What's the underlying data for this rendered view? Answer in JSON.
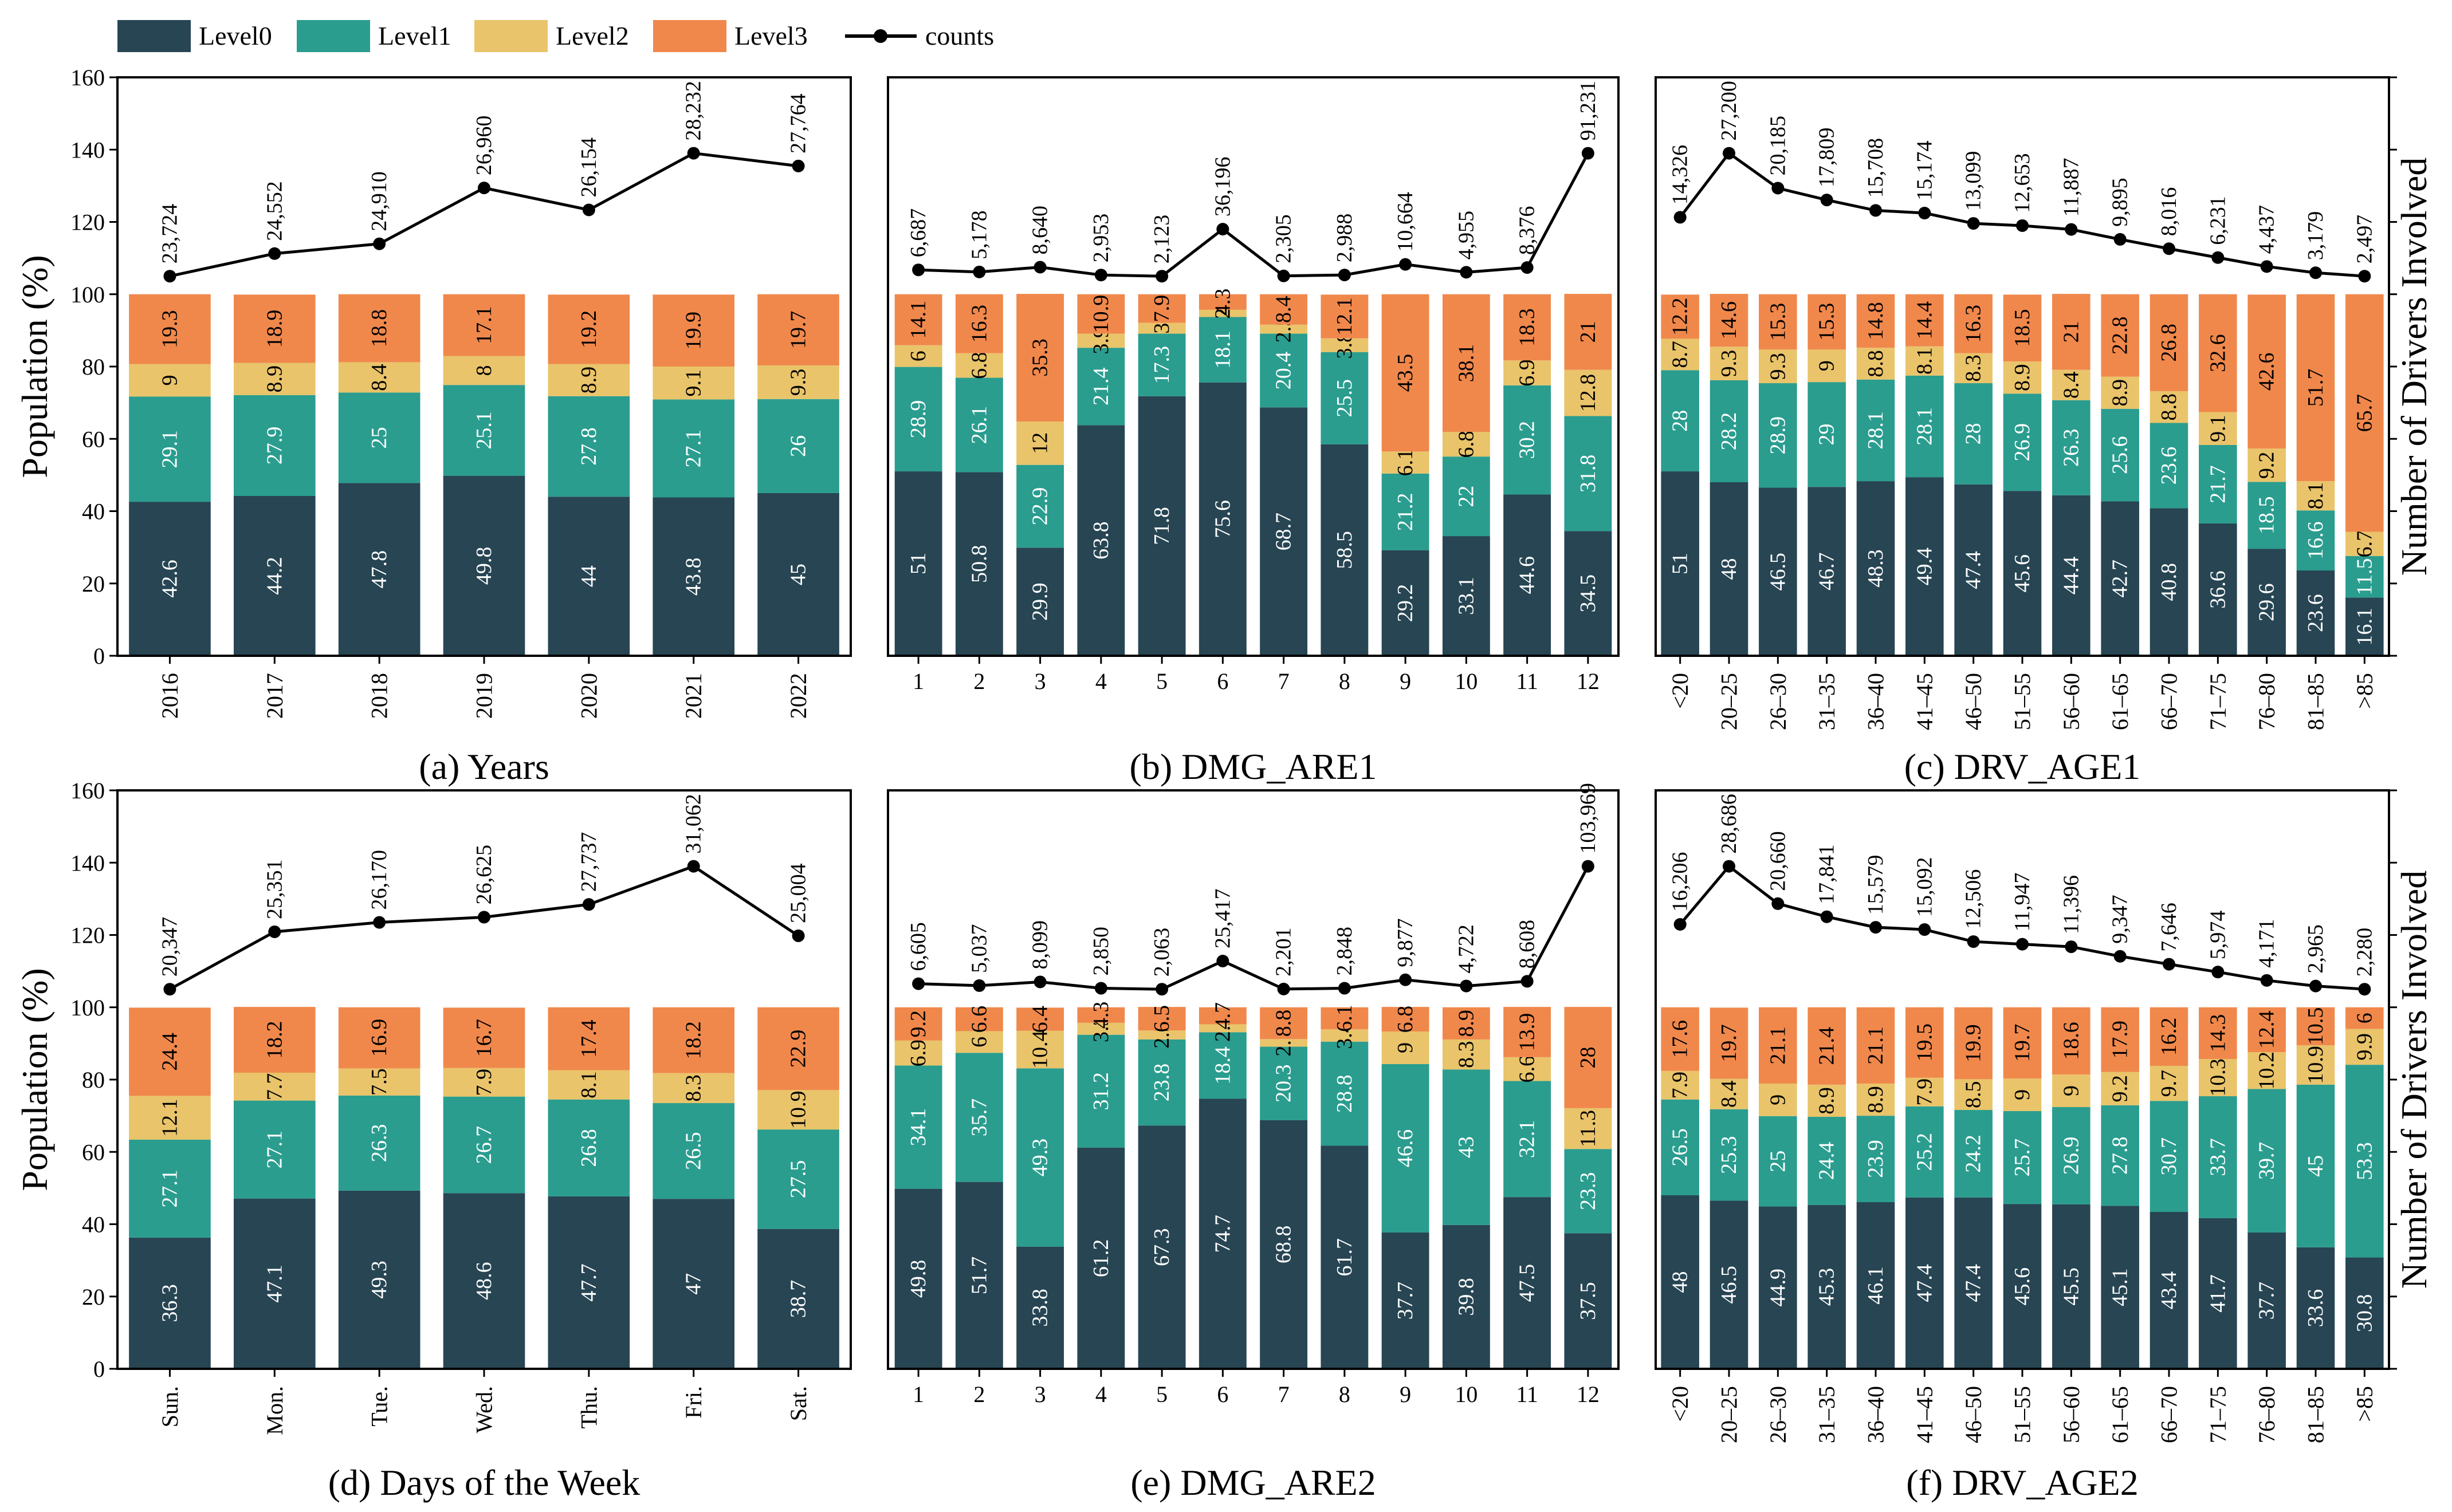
{
  "colors": {
    "Level0": "#274553",
    "Level1": "#2a9d8f",
    "Level2": "#e9c46a",
    "Level3": "#f0884c",
    "counts": "#000000"
  },
  "legend": [
    "Level0",
    "Level1",
    "Level2",
    "Level3",
    "counts"
  ],
  "axis_labels": {
    "left": "Population (%)",
    "right": "Number of Drivers Involved"
  },
  "chart_data": [
    {
      "id": "a",
      "type": "bar",
      "title": "(a) Years",
      "ylabel": "Population (%)",
      "ylim": [
        0,
        160
      ],
      "yticks": [
        "0",
        "20",
        "40",
        "60",
        "80",
        "100",
        "120",
        "140",
        "160"
      ],
      "categories": [
        "2016",
        "2017",
        "2018",
        "2019",
        "2020",
        "2021",
        "2022"
      ],
      "series": [
        {
          "name": "Level0",
          "values": [
            42.6,
            44.2,
            47.8,
            49.8,
            44,
            43.8,
            45
          ]
        },
        {
          "name": "Level1",
          "values": [
            29.1,
            27.9,
            25,
            25.1,
            27.8,
            27.1,
            26
          ]
        },
        {
          "name": "Level2",
          "values": [
            9,
            8.9,
            8.4,
            8,
            8.9,
            9.1,
            9.3
          ]
        },
        {
          "name": "Level3",
          "values": [
            19.3,
            18.9,
            18.8,
            17.1,
            19.2,
            19.9,
            19.7
          ]
        }
      ],
      "counts": [
        "23,724",
        "24,552",
        "24,910",
        "26,960",
        "26,154",
        "28,232",
        "27,764"
      ]
    },
    {
      "id": "b",
      "type": "bar",
      "title": "(b) DMG_ARE1",
      "ylim": [
        0,
        160
      ],
      "categories": [
        "1",
        "2",
        "3",
        "4",
        "5",
        "6",
        "7",
        "8",
        "9",
        "10",
        "11",
        "12"
      ],
      "series": [
        {
          "name": "Level0",
          "values": [
            51,
            50.8,
            29.9,
            63.8,
            71.8,
            75.6,
            68.7,
            58.5,
            29.2,
            33.1,
            44.6,
            34.5
          ]
        },
        {
          "name": "Level1",
          "values": [
            28.9,
            26.1,
            22.9,
            21.4,
            17.3,
            18.1,
            20.4,
            25.5,
            21.2,
            22,
            30.2,
            31.8
          ]
        },
        {
          "name": "Level2",
          "values": [
            6,
            6.8,
            12,
            3.9,
            3,
            2,
            2.5,
            3.8,
            6.1,
            6.8,
            6.9,
            12.8
          ]
        },
        {
          "name": "Level3",
          "values": [
            14.1,
            16.3,
            35.3,
            10.9,
            7.9,
            4.3,
            8.4,
            12.1,
            43.5,
            38.1,
            18.3,
            21
          ]
        }
      ],
      "counts": [
        "6,687",
        "5,178",
        "8,640",
        "2,953",
        "2,123",
        "36,196",
        "2,305",
        "2,988",
        "10,664",
        "4,955",
        "8,376",
        "91,231"
      ]
    },
    {
      "id": "c",
      "type": "bar",
      "title": "(c) DRV_AGE1",
      "ylabel": "Number of Drivers Involved",
      "ylim": [
        0,
        160
      ],
      "categories": [
        "<20",
        "20–25",
        "26–30",
        "31–35",
        "36–40",
        "41–45",
        "46–50",
        "51–55",
        "56–60",
        "61–65",
        "66–70",
        "71–75",
        "76–80",
        "81–85",
        ">85"
      ],
      "series": [
        {
          "name": "Level0",
          "values": [
            51,
            48,
            46.5,
            46.7,
            48.3,
            49.4,
            47.4,
            45.6,
            44.4,
            42.7,
            40.8,
            36.6,
            29.6,
            23.6,
            16.1
          ]
        },
        {
          "name": "Level1",
          "values": [
            28,
            28.2,
            28.9,
            29,
            28.1,
            28.1,
            28,
            26.9,
            26.3,
            25.6,
            23.6,
            21.7,
            18.5,
            16.6,
            11.5
          ]
        },
        {
          "name": "Level2",
          "values": [
            8.7,
            9.3,
            9.3,
            9,
            8.8,
            8.1,
            8.3,
            8.9,
            8.4,
            8.9,
            8.8,
            9.1,
            9.2,
            8.1,
            6.7
          ]
        },
        {
          "name": "Level3",
          "values": [
            12.2,
            14.6,
            15.3,
            15.3,
            14.8,
            14.4,
            16.3,
            18.5,
            21,
            22.8,
            26.8,
            32.6,
            42.6,
            51.7,
            65.7
          ]
        }
      ],
      "counts": [
        "14,326",
        "27,200",
        "20,185",
        "17,809",
        "15,708",
        "15,174",
        "13,099",
        "12,653",
        "11,887",
        "9,895",
        "8,016",
        "6,231",
        "4,437",
        "3,179",
        "2,497"
      ]
    },
    {
      "id": "d",
      "type": "bar",
      "title": "(d) Days of the Week",
      "ylabel": "Population (%)",
      "ylim": [
        0,
        160
      ],
      "yticks": [
        "0",
        "20",
        "40",
        "60",
        "80",
        "100",
        "120",
        "140",
        "160"
      ],
      "categories": [
        "Sun.",
        "Mon.",
        "Tue.",
        "Wed.",
        "Thu.",
        "Fri.",
        "Sat."
      ],
      "series": [
        {
          "name": "Level0",
          "values": [
            36.3,
            47.1,
            49.3,
            48.6,
            47.7,
            47,
            38.7
          ]
        },
        {
          "name": "Level1",
          "values": [
            27.1,
            27.1,
            26.3,
            26.7,
            26.8,
            26.5,
            27.5
          ]
        },
        {
          "name": "Level2",
          "values": [
            12.1,
            7.7,
            7.5,
            7.9,
            8.1,
            8.3,
            10.9
          ]
        },
        {
          "name": "Level3",
          "values": [
            24.4,
            18.2,
            16.9,
            16.7,
            17.4,
            18.2,
            22.9
          ]
        }
      ],
      "counts": [
        "20,347",
        "25,351",
        "26,170",
        "26,625",
        "27,737",
        "31,062",
        "25,004"
      ]
    },
    {
      "id": "e",
      "type": "bar",
      "title": "(e) DMG_ARE2",
      "ylim": [
        0,
        160
      ],
      "categories": [
        "1",
        "2",
        "3",
        "4",
        "5",
        "6",
        "7",
        "8",
        "9",
        "10",
        "11",
        "12"
      ],
      "series": [
        {
          "name": "Level0",
          "values": [
            49.8,
            51.7,
            33.8,
            61.2,
            67.3,
            74.7,
            68.8,
            61.7,
            37.7,
            39.8,
            47.5,
            37.5
          ]
        },
        {
          "name": "Level1",
          "values": [
            34.1,
            35.7,
            49.3,
            31.2,
            23.8,
            18.4,
            20.3,
            28.8,
            46.6,
            43,
            32.1,
            23.3
          ]
        },
        {
          "name": "Level2",
          "values": [
            6.9,
            6,
            10.4,
            3.3,
            2.5,
            2.2,
            2.1,
            3.4,
            9,
            8.3,
            6.6,
            11.3
          ]
        },
        {
          "name": "Level3",
          "values": [
            9.2,
            6.6,
            6.4,
            4.3,
            6.5,
            4.7,
            8.8,
            6.1,
            6.8,
            8.9,
            13.9,
            28
          ]
        }
      ],
      "counts": [
        "6,605",
        "5,037",
        "8,099",
        "2,850",
        "2,063",
        "25,417",
        "2,201",
        "2,848",
        "9,877",
        "4,722",
        "8,608",
        "103,969"
      ]
    },
    {
      "id": "f",
      "type": "bar",
      "title": "(f) DRV_AGE2",
      "ylabel": "Number of Drivers Involved",
      "ylim": [
        0,
        160
      ],
      "categories": [
        "<20",
        "20–25",
        "26–30",
        "31–35",
        "36–40",
        "41–45",
        "46–50",
        "51–55",
        "56–60",
        "61–65",
        "66–70",
        "71–75",
        "76–80",
        "81–85",
        ">85"
      ],
      "series": [
        {
          "name": "Level0",
          "values": [
            48,
            46.5,
            44.9,
            45.3,
            46.1,
            47.4,
            47.4,
            45.6,
            45.5,
            45.1,
            43.4,
            41.7,
            37.7,
            33.6,
            30.8
          ]
        },
        {
          "name": "Level1",
          "values": [
            26.5,
            25.3,
            25,
            24.4,
            23.9,
            25.2,
            24.2,
            25.7,
            26.9,
            27.8,
            30.7,
            33.7,
            39.7,
            45,
            53.3
          ]
        },
        {
          "name": "Level2",
          "values": [
            7.9,
            8.4,
            9,
            8.9,
            8.9,
            7.9,
            8.5,
            9,
            9,
            9.2,
            9.7,
            10.3,
            10.2,
            10.9,
            9.9
          ]
        },
        {
          "name": "Level3",
          "values": [
            17.6,
            19.7,
            21.1,
            21.4,
            21.1,
            19.5,
            19.9,
            19.7,
            18.6,
            17.9,
            16.2,
            14.3,
            12.4,
            10.5,
            6
          ]
        }
      ],
      "counts": [
        "16,206",
        "28,686",
        "20,660",
        "17,841",
        "15,579",
        "15,092",
        "12,506",
        "11,947",
        "11,396",
        "9,347",
        "7,646",
        "5,974",
        "4,171",
        "2,965",
        "2,280"
      ]
    }
  ]
}
